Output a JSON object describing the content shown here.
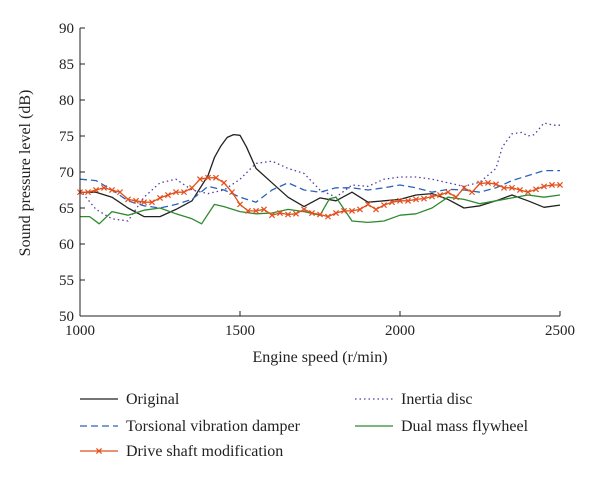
{
  "chart_data": {
    "type": "line",
    "xlabel": "Engine speed (r/min)",
    "ylabel": "Sound pressure level (dB)",
    "xlim": [
      1000,
      2500
    ],
    "ylim": [
      50,
      90
    ],
    "xticks": [
      1000,
      1500,
      2000,
      2500
    ],
    "yticks": [
      50,
      55,
      60,
      65,
      70,
      75,
      80,
      85,
      90
    ],
    "grid": false,
    "legend_position": "bottom",
    "series": [
      {
        "name": "Original",
        "color": "#222222",
        "style": "solid",
        "marker": "none",
        "x": [
          1000,
          1050,
          1100,
          1150,
          1200,
          1250,
          1300,
          1350,
          1400,
          1420,
          1440,
          1460,
          1480,
          1500,
          1520,
          1550,
          1600,
          1650,
          1700,
          1750,
          1800,
          1850,
          1900,
          1950,
          2000,
          2050,
          2100,
          2150,
          2200,
          2250,
          2300,
          2350,
          2400,
          2450,
          2500
        ],
        "y": [
          67.2,
          67.2,
          66.5,
          65,
          63.8,
          63.8,
          64.8,
          66,
          69.5,
          72,
          73.6,
          74.8,
          75.2,
          75.1,
          73.5,
          70.5,
          68.5,
          66.5,
          65.2,
          66.4,
          66,
          67.2,
          65.8,
          66,
          66.2,
          66.8,
          67,
          66.2,
          65,
          65.3,
          66,
          66.8,
          66,
          65.1,
          65.4
        ]
      },
      {
        "name": "Torsional vibration damper",
        "color": "#2b63b8",
        "style": "dashed",
        "marker": "none",
        "x": [
          1000,
          1050,
          1100,
          1150,
          1200,
          1250,
          1300,
          1350,
          1400,
          1450,
          1500,
          1550,
          1600,
          1650,
          1700,
          1750,
          1800,
          1850,
          1900,
          1950,
          2000,
          2050,
          2100,
          2150,
          2200,
          2250,
          2300,
          2350,
          2400,
          2450,
          2500
        ],
        "y": [
          69,
          68.8,
          67.5,
          66,
          65.3,
          65,
          65.5,
          66.2,
          68,
          67.5,
          66.5,
          65.8,
          67.5,
          68.5,
          67.5,
          67.2,
          67.8,
          67.8,
          67.5,
          67.8,
          68.2,
          67.8,
          67.2,
          67.6,
          67.5,
          67.2,
          67.8,
          68.8,
          69.5,
          70.2,
          70.2
        ]
      },
      {
        "name": "Inertia disc",
        "color": "#4e3fa6",
        "style": "dotted",
        "marker": "none",
        "x": [
          1000,
          1050,
          1100,
          1150,
          1200,
          1250,
          1300,
          1350,
          1400,
          1450,
          1500,
          1550,
          1600,
          1650,
          1700,
          1750,
          1800,
          1850,
          1900,
          1950,
          2000,
          2050,
          2100,
          2150,
          2200,
          2250,
          2300,
          2320,
          2350,
          2380,
          2400,
          2420,
          2450,
          2480,
          2500
        ],
        "y": [
          67.5,
          64.8,
          63.5,
          63.2,
          66.5,
          68.5,
          69,
          67.5,
          67,
          67.5,
          69,
          71.2,
          71.5,
          70.5,
          69.8,
          67.5,
          66.5,
          68.2,
          68,
          69,
          69.3,
          69.3,
          69,
          68.5,
          68,
          68.6,
          70.5,
          73.5,
          75.3,
          75.5,
          75,
          75.2,
          76.8,
          76.5,
          76.5
        ]
      },
      {
        "name": "Dual mass flywheel",
        "color": "#2e8b2e",
        "style": "solid",
        "marker": "none",
        "x": [
          1000,
          1030,
          1060,
          1100,
          1150,
          1200,
          1250,
          1300,
          1350,
          1380,
          1420,
          1450,
          1500,
          1550,
          1600,
          1650,
          1700,
          1750,
          1780,
          1800,
          1850,
          1900,
          1950,
          2000,
          2050,
          2100,
          2150,
          2200,
          2250,
          2300,
          2350,
          2400,
          2450,
          2500
        ],
        "y": [
          63.8,
          63.8,
          62.8,
          64.5,
          64,
          64.7,
          65,
          64.2,
          63.5,
          62.8,
          65.5,
          65.2,
          64.5,
          64.2,
          64.3,
          64.8,
          64.5,
          64,
          66.3,
          66.5,
          63.2,
          63,
          63.2,
          64,
          64.2,
          65,
          66.5,
          66.2,
          65.6,
          66,
          66.4,
          66.8,
          66.5,
          66.8
        ]
      },
      {
        "name": "Drive shaft modification",
        "color": "#e2501c",
        "style": "solid",
        "marker": "x",
        "x": [
          1000,
          1025,
          1050,
          1075,
          1100,
          1125,
          1150,
          1175,
          1200,
          1225,
          1250,
          1275,
          1300,
          1325,
          1350,
          1375,
          1400,
          1425,
          1450,
          1475,
          1500,
          1525,
          1550,
          1575,
          1600,
          1625,
          1650,
          1675,
          1700,
          1725,
          1750,
          1775,
          1800,
          1825,
          1850,
          1875,
          1900,
          1925,
          1950,
          1975,
          2000,
          2025,
          2050,
          2075,
          2100,
          2125,
          2150,
          2175,
          2200,
          2225,
          2250,
          2275,
          2300,
          2325,
          2350,
          2375,
          2400,
          2425,
          2450,
          2475,
          2500
        ],
        "y": [
          67.2,
          67.2,
          67.5,
          67.8,
          67.5,
          67.2,
          66.2,
          66,
          65.8,
          65.8,
          66.4,
          66.8,
          67.2,
          67.2,
          67.8,
          69,
          69.2,
          69.2,
          68.5,
          67.2,
          65.5,
          64.6,
          64.6,
          64.8,
          64,
          64.3,
          64.1,
          64.2,
          64.8,
          64.3,
          64.1,
          63.8,
          64.3,
          64.6,
          64.6,
          64.8,
          65.5,
          64.8,
          65.4,
          65.8,
          66,
          66,
          66.2,
          66.3,
          66.6,
          66.8,
          67.2,
          66.5,
          67.8,
          67.2,
          68.4,
          68.5,
          68.3,
          67.8,
          67.8,
          67.5,
          67.2,
          67.6,
          68,
          68.2,
          68.2
        ]
      }
    ]
  }
}
